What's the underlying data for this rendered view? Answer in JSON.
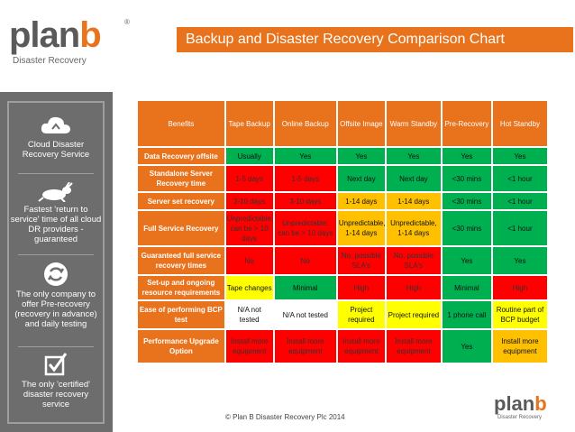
{
  "brand": {
    "logo_main": "plan",
    "logo_accent": "b",
    "logo_sub": "Disaster Recovery",
    "registered": "®"
  },
  "title": "Backup and Disaster Recovery Comparison Chart",
  "sidebar": {
    "items": [
      {
        "icon": "cloud-sync-icon",
        "text": "Cloud Disaster Recovery Service"
      },
      {
        "icon": "rabbit-icon",
        "text": "Fastest 'return to service' time of all cloud DR providers - guaranteed"
      },
      {
        "icon": "refresh-icon",
        "text": "The only company to offer Pre-recovery (recovery in advance) and daily testing"
      },
      {
        "icon": "checkbox-icon",
        "text": "The only 'certified' disaster recovery service"
      }
    ]
  },
  "table": {
    "headers": [
      "Benefits",
      "Tape Backup",
      "Online Backup",
      "Offsite Image",
      "Warm Standby",
      "Pre-Recovery",
      "Hot Standby"
    ],
    "rows": [
      {
        "label": "Data Recovery offsite",
        "cells": [
          {
            "text": "Usually",
            "color": "green"
          },
          {
            "text": "Yes",
            "color": "green"
          },
          {
            "text": "Yes",
            "color": "green"
          },
          {
            "text": "Yes",
            "color": "green"
          },
          {
            "text": "Yes",
            "color": "green"
          },
          {
            "text": "Yes",
            "color": "green"
          }
        ]
      },
      {
        "label": "Standalone Server Recovery time",
        "cells": [
          {
            "text": "1-5 days",
            "color": "red"
          },
          {
            "text": "1-5 days",
            "color": "red"
          },
          {
            "text": "Next day",
            "color": "green"
          },
          {
            "text": "Next day",
            "color": "green"
          },
          {
            "text": "<30 mins",
            "color": "green"
          },
          {
            "text": "<1 hour",
            "color": "green"
          }
        ]
      },
      {
        "label": "Server set recovery",
        "cells": [
          {
            "text": "3-10 days",
            "color": "red"
          },
          {
            "text": "3-10 days",
            "color": "red"
          },
          {
            "text": "1-14 days",
            "color": "orange"
          },
          {
            "text": "1-14 days",
            "color": "orange"
          },
          {
            "text": "<30 mins",
            "color": "green"
          },
          {
            "text": "<1 hour",
            "color": "green"
          }
        ]
      },
      {
        "label": "Full Service Recovery",
        "cells": [
          {
            "text": "Unpredictable, can be > 10 days",
            "color": "red"
          },
          {
            "text": "Unpredictable, can be > 10 days",
            "color": "red"
          },
          {
            "text": "Unpredictable, 1-14 days",
            "color": "orange"
          },
          {
            "text": "Unpredictable, 1-14 days",
            "color": "orange"
          },
          {
            "text": "<30 mins",
            "color": "green"
          },
          {
            "text": "<1 hour",
            "color": "green"
          }
        ]
      },
      {
        "label": "Guaranteed full service recovery times",
        "cells": [
          {
            "text": "No",
            "color": "red"
          },
          {
            "text": "No",
            "color": "red"
          },
          {
            "text": "No, possible SLA's",
            "color": "red"
          },
          {
            "text": "No, possible SLA's",
            "color": "red"
          },
          {
            "text": "Yes",
            "color": "green"
          },
          {
            "text": "Yes",
            "color": "green"
          }
        ]
      },
      {
        "label": "Set-up and ongoing resource requirements",
        "cells": [
          {
            "text": "Tape changes",
            "color": "yellow"
          },
          {
            "text": "Minimal",
            "color": "green"
          },
          {
            "text": "High",
            "color": "red"
          },
          {
            "text": "High",
            "color": "red"
          },
          {
            "text": "Minimal",
            "color": "green"
          },
          {
            "text": "High",
            "color": "red"
          }
        ]
      },
      {
        "label": "Ease of performing BCP test",
        "cells": [
          {
            "text": "N/A not tested",
            "color": "white"
          },
          {
            "text": "N/A not tested",
            "color": "white"
          },
          {
            "text": "Project required",
            "color": "yellow"
          },
          {
            "text": "Project required",
            "color": "yellow"
          },
          {
            "text": "1 phone call",
            "color": "green"
          },
          {
            "text": "Routine part of BCP budget",
            "color": "yellow"
          }
        ]
      },
      {
        "label": "Performance Upgrade Option",
        "cells": [
          {
            "text": "Install more equipment",
            "color": "red"
          },
          {
            "text": "Install more equipment",
            "color": "red"
          },
          {
            "text": "Install more equipment",
            "color": "red"
          },
          {
            "text": "Install more equipment",
            "color": "red"
          },
          {
            "text": "Yes",
            "color": "green"
          },
          {
            "text": "Install more equipment",
            "color": "orange"
          }
        ]
      }
    ]
  },
  "footer": "© Plan B Disaster Recovery Plc 2014",
  "colors": {
    "accent": "#e8731c",
    "sidebar": "#6d6d6d",
    "red": "#ff0000",
    "green": "#00b050",
    "yellow": "#ffff00",
    "orange": "#ffc000"
  }
}
